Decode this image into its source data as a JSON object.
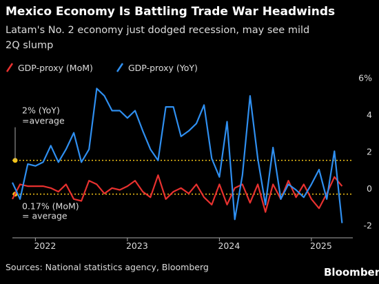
{
  "chart_data": {
    "type": "line",
    "title": "Mexico Economy Is Battling Trade War Headwinds",
    "subtitle_lines": [
      "Latam's No. 2 economy just dodged recession, may see mild",
      "2Q slump"
    ],
    "source": "Sources: National statistics agency, Bloomberg",
    "logo": "Bloomberg",
    "x": [
      2021.75,
      2021.833,
      2021.917,
      2022.0,
      2022.083,
      2022.167,
      2022.25,
      2022.333,
      2022.417,
      2022.5,
      2022.583,
      2022.667,
      2022.75,
      2022.833,
      2022.917,
      2023.0,
      2023.083,
      2023.167,
      2023.25,
      2023.333,
      2023.417,
      2023.5,
      2023.583,
      2023.667,
      2023.75,
      2023.833,
      2023.917,
      2024.0,
      2024.083,
      2024.167,
      2024.25,
      2024.333,
      2024.417,
      2024.5,
      2024.583,
      2024.667,
      2024.75,
      2024.833,
      2024.917,
      2025.0,
      2025.083,
      2025.167,
      2025.25,
      2025.333
    ],
    "series": [
      {
        "name": "GDP-proxy (MoM)",
        "color": "#e8312f",
        "values": [
          -0.1,
          0.7,
          0.6,
          0.6,
          0.6,
          0.5,
          0.3,
          0.7,
          -0.1,
          -0.2,
          0.9,
          0.7,
          0.2,
          0.5,
          0.4,
          0.6,
          0.9,
          0.3,
          0.0,
          1.2,
          -0.1,
          0.3,
          0.5,
          0.2,
          0.7,
          0.0,
          -0.4,
          0.7,
          -0.4,
          0.5,
          0.7,
          -0.3,
          0.7,
          -0.8,
          0.7,
          -0.1,
          0.9,
          0.0,
          0.7,
          -0.1,
          -0.6,
          0.2,
          1.1,
          0.6
        ]
      },
      {
        "name": "GDP-proxy (YoY)",
        "color": "#2f8ff0",
        "values": [
          0.8,
          -0.1,
          1.8,
          1.7,
          1.9,
          2.8,
          1.9,
          2.6,
          3.5,
          1.9,
          2.6,
          5.9,
          5.5,
          4.7,
          4.7,
          4.3,
          4.7,
          3.6,
          2.6,
          2.0,
          4.9,
          4.9,
          3.3,
          3.6,
          4.0,
          5.0,
          2.1,
          1.1,
          4.1,
          -1.2,
          1.2,
          5.5,
          2.1,
          -0.4,
          2.7,
          -0.1,
          0.7,
          0.4,
          0.0,
          0.7,
          1.5,
          -0.1,
          2.5,
          -1.4
        ]
      }
    ],
    "reference_lines": [
      {
        "value": 2,
        "color": "#f5c518",
        "label_lines": [
          "2% (YoY)",
          "=average"
        ]
      },
      {
        "value": 0.17,
        "color": "#f5c518",
        "label_lines": [
          "0.17% (MoM)",
          "= average"
        ]
      }
    ],
    "xlim": [
      2021.75,
      2025.45
    ],
    "xticks": [
      2022,
      2023,
      2024,
      2025
    ],
    "ylim": [
      -2.2,
      6.4
    ],
    "yticks": [
      {
        "value": 6,
        "label": "6%"
      },
      4,
      2,
      0,
      -2
    ],
    "grid": false
  }
}
